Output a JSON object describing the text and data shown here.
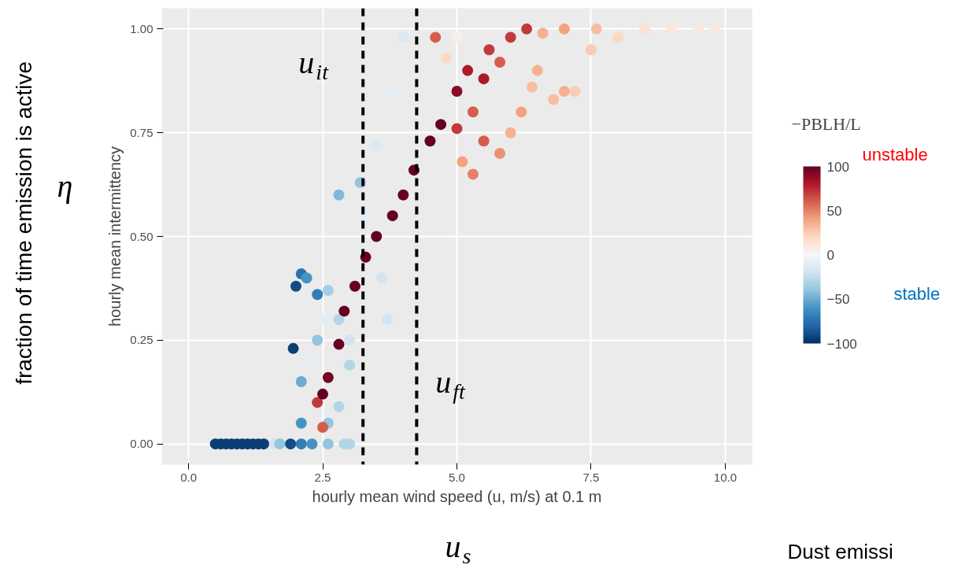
{
  "chart_data": {
    "type": "scatter",
    "xlabel": "hourly mean wind speed (u, m/s) at 0.1 m",
    "ylabel": "hourly mean intermittency",
    "clabel": "−PBLH/L",
    "xlim": [
      -0.5,
      10.5
    ],
    "ylim": [
      -0.05,
      1.05
    ],
    "xticks": [
      {
        "value": 0,
        "label": "0.0"
      },
      {
        "value": 2.5,
        "label": "2.5"
      },
      {
        "value": 5,
        "label": "5.0"
      },
      {
        "value": 7.5,
        "label": "7.5"
      },
      {
        "value": 10,
        "label": "10.0"
      }
    ],
    "yticks": [
      {
        "value": 0,
        "label": "0.00"
      },
      {
        "value": 0.25,
        "label": "0.25"
      },
      {
        "value": 0.5,
        "label": "0.50"
      },
      {
        "value": 0.75,
        "label": "0.75"
      },
      {
        "value": 1,
        "label": "1.00"
      }
    ],
    "clim": [
      -100,
      100
    ],
    "cticks": [
      -100,
      -50,
      0,
      50,
      100
    ],
    "grid": true,
    "marker": "circle",
    "x": [
      0.5,
      0.6,
      0.7,
      0.8,
      0.9,
      1.0,
      1.1,
      1.2,
      1.3,
      1.4,
      1.6,
      1.7,
      1.9,
      2.1,
      2.3,
      2.6,
      2.9,
      3.0,
      2.0,
      2.1,
      2.2,
      2.4,
      1.95,
      2.1,
      2.1,
      2.4,
      2.6,
      2.8,
      2.8,
      2.6,
      2.4,
      2.5,
      2.8,
      3.0,
      2.3,
      2.5,
      2.5,
      2.6,
      2.8,
      2.9,
      3.1,
      3.3,
      3.5,
      3.8,
      4.0,
      4.2,
      4.5,
      4.7,
      5.0,
      5.2,
      5.6,
      6.0,
      6.3,
      3.0,
      3.3,
      3.2,
      3.5,
      3.8,
      4.0,
      4.0,
      3.6,
      3.7,
      5.1,
      5.3,
      5.5,
      5.8,
      6.0,
      6.2,
      6.4,
      6.8,
      7.0,
      7.2,
      6.5,
      7.5,
      8.0,
      8.5,
      9.0,
      9.5,
      9.8,
      7.0,
      7.6,
      5.5,
      5.8,
      6.6,
      4.8,
      5.0,
      4.6,
      5.3,
      5.0
    ],
    "values": [
      0,
      0,
      0,
      0,
      0,
      0,
      0,
      0,
      0,
      0,
      0,
      0,
      0,
      0,
      0,
      0,
      0,
      0,
      0.38,
      0.41,
      0.4,
      0.36,
      0.23,
      0.15,
      0.05,
      0.25,
      0.37,
      0.6,
      0.3,
      0.05,
      0.1,
      0.04,
      0.09,
      0.19,
      0.2,
      0.3,
      0.12,
      0.16,
      0.24,
      0.32,
      0.38,
      0.45,
      0.5,
      0.55,
      0.6,
      0.66,
      0.73,
      0.77,
      0.85,
      0.9,
      0.95,
      0.98,
      1.0,
      0.25,
      0.55,
      0.63,
      0.72,
      0.85,
      0.98,
      0.8,
      0.4,
      0.3,
      0.68,
      0.65,
      0.73,
      0.7,
      0.75,
      0.8,
      0.86,
      0.83,
      0.85,
      0.85,
      0.9,
      0.95,
      0.98,
      1.0,
      1.0,
      1.0,
      1.0,
      1.0,
      1.0,
      0.88,
      0.92,
      0.99,
      0.93,
      0.98,
      0.98,
      0.8,
      0.76
    ],
    "cvalues": [
      -95,
      -95,
      -95,
      -95,
      -95,
      -95,
      -95,
      -95,
      -95,
      -95,
      -20,
      -40,
      -90,
      -70,
      -60,
      -40,
      -30,
      -30,
      -90,
      -75,
      -60,
      -70,
      -95,
      -50,
      -60,
      -40,
      -35,
      -45,
      -30,
      -40,
      70,
      60,
      -30,
      -30,
      -10,
      -10,
      100,
      95,
      100,
      100,
      100,
      100,
      100,
      100,
      100,
      100,
      100,
      100,
      90,
      80,
      70,
      70,
      70,
      -20,
      -10,
      -40,
      -15,
      -10,
      -15,
      -10,
      -20,
      -20,
      40,
      50,
      60,
      45,
      35,
      40,
      30,
      30,
      35,
      25,
      35,
      25,
      20,
      15,
      10,
      10,
      10,
      40,
      30,
      80,
      60,
      35,
      20,
      5,
      60,
      60,
      70
    ],
    "ref_lines": [
      {
        "axis": "x",
        "value": 3.25,
        "label": "u$_{it}$",
        "color": "#000000",
        "line_style": "dashed"
      },
      {
        "axis": "x",
        "value": 4.25,
        "label": "u$_{ft}$",
        "color": "#000000",
        "line_style": "dashed"
      }
    ],
    "annotations": [
      "fraction of time emission is active",
      "η",
      "u$_{s}$",
      "unstable",
      "stable",
      "Dust emissi"
    ]
  }
}
